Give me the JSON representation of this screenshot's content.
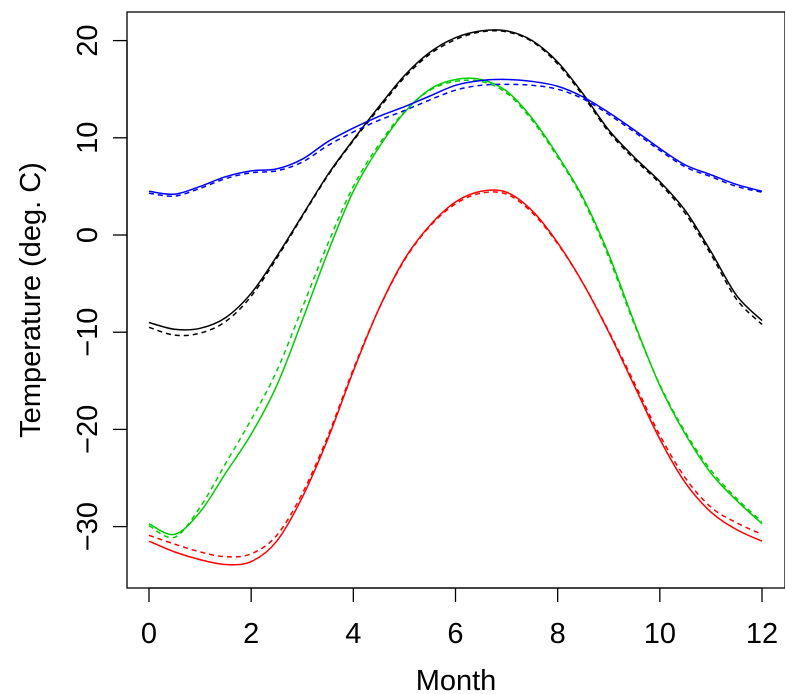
{
  "chart_data": {
    "type": "line",
    "xlabel": "Month",
    "ylabel": "Temperature (deg. C)",
    "xlim": [
      0,
      12
    ],
    "ylim": [
      -36,
      23
    ],
    "xticks": [
      0,
      2,
      4,
      6,
      8,
      10,
      12
    ],
    "yticks": [
      -30,
      -20,
      -10,
      0,
      10,
      20
    ],
    "grid": false,
    "series": [
      {
        "color": "#000000",
        "style": "solid",
        "x": [
          0,
          0.5,
          1,
          1.5,
          2,
          2.5,
          3,
          3.5,
          4,
          4.5,
          5,
          5.5,
          6,
          6.5,
          7,
          7.5,
          8,
          8.5,
          9,
          9.5,
          10,
          10.5,
          11,
          11.5,
          12
        ],
        "y": [
          -9.0,
          -9.7,
          -9.6,
          -8.5,
          -6.0,
          -2.2,
          2.0,
          6.2,
          9.8,
          13.2,
          16.4,
          18.8,
          20.3,
          21.0,
          21.0,
          20.0,
          17.8,
          14.5,
          10.8,
          8.0,
          5.5,
          2.5,
          -1.7,
          -6.2,
          -8.8
        ]
      },
      {
        "color": "#000000",
        "style": "dashed",
        "x": [
          0,
          0.5,
          1,
          1.5,
          2,
          2.5,
          3,
          3.5,
          4,
          4.5,
          5,
          5.5,
          6,
          6.5,
          7,
          7.5,
          8,
          8.5,
          9,
          9.5,
          10,
          10.5,
          11,
          11.5,
          12
        ],
        "y": [
          -9.5,
          -10.3,
          -10.1,
          -8.9,
          -6.3,
          -2.4,
          1.9,
          6.1,
          9.7,
          13.0,
          16.2,
          18.6,
          20.1,
          20.9,
          20.9,
          19.9,
          17.6,
          14.3,
          10.6,
          7.8,
          5.3,
          2.2,
          -2.0,
          -6.6,
          -9.2
        ]
      },
      {
        "color": "#ff0000",
        "style": "solid",
        "x": [
          0,
          0.5,
          1,
          1.5,
          2,
          2.5,
          3,
          3.5,
          4,
          4.5,
          5,
          5.5,
          6,
          6.5,
          7,
          7.5,
          8,
          8.5,
          9,
          9.5,
          10,
          10.5,
          11,
          11.5,
          12
        ],
        "y": [
          -31.5,
          -32.6,
          -33.4,
          -33.9,
          -33.6,
          -31.5,
          -27.0,
          -21.0,
          -14.0,
          -7.6,
          -2.5,
          1.0,
          3.4,
          4.5,
          4.4,
          2.5,
          -0.8,
          -5.0,
          -10.0,
          -15.5,
          -21.0,
          -25.5,
          -28.5,
          -30.3,
          -31.5
        ]
      },
      {
        "color": "#ff0000",
        "style": "dashed",
        "x": [
          0,
          0.5,
          1,
          1.5,
          2,
          2.5,
          3,
          3.5,
          4,
          4.5,
          5,
          5.5,
          6,
          6.5,
          7,
          7.5,
          8,
          8.5,
          9,
          9.5,
          10,
          10.5,
          11,
          11.5,
          12
        ],
        "y": [
          -30.9,
          -31.8,
          -32.6,
          -33.1,
          -32.8,
          -30.9,
          -26.6,
          -20.7,
          -13.8,
          -7.6,
          -2.6,
          0.9,
          3.2,
          4.3,
          4.2,
          2.3,
          -0.9,
          -5.0,
          -9.9,
          -15.2,
          -20.6,
          -25.0,
          -28.0,
          -29.6,
          -30.8
        ]
      },
      {
        "color": "#00cd00",
        "style": "solid",
        "x": [
          0,
          0.5,
          1,
          1.5,
          2,
          2.5,
          3,
          3.5,
          4,
          4.5,
          5,
          5.5,
          6,
          6.5,
          7,
          7.5,
          8,
          8.5,
          9,
          9.5,
          10,
          10.5,
          11,
          11.5,
          12
        ],
        "y": [
          -29.7,
          -30.8,
          -28.5,
          -24.5,
          -20.5,
          -15.5,
          -8.8,
          -1.8,
          4.5,
          9.0,
          12.6,
          15.0,
          16.0,
          16.0,
          14.8,
          12.0,
          8.2,
          3.8,
          -2.0,
          -9.0,
          -15.5,
          -20.5,
          -24.5,
          -27.3,
          -29.7
        ]
      },
      {
        "color": "#00cd00",
        "style": "dashed",
        "x": [
          0,
          0.5,
          1,
          1.5,
          2,
          2.5,
          3,
          3.5,
          4,
          4.5,
          5,
          5.5,
          6,
          6.5,
          7,
          7.5,
          8,
          8.5,
          9,
          9.5,
          10,
          10.5,
          11,
          11.5,
          12
        ],
        "y": [
          -29.9,
          -31.1,
          -28.0,
          -23.5,
          -19.0,
          -14.0,
          -7.5,
          -0.9,
          5.0,
          9.3,
          12.7,
          14.9,
          15.8,
          15.8,
          14.6,
          11.8,
          8.0,
          3.6,
          -2.3,
          -9.2,
          -15.4,
          -20.3,
          -24.2,
          -27.1,
          -29.5
        ]
      },
      {
        "color": "#0000ff",
        "style": "solid",
        "x": [
          0,
          0.5,
          1,
          1.5,
          2,
          2.5,
          3,
          3.5,
          4,
          4.5,
          5,
          5.5,
          6,
          6.5,
          7,
          7.5,
          8,
          8.5,
          9,
          9.5,
          10,
          10.5,
          11,
          11.5,
          12
        ],
        "y": [
          4.5,
          4.2,
          5.0,
          6.0,
          6.6,
          6.8,
          7.8,
          9.6,
          11.0,
          12.2,
          13.2,
          14.3,
          15.4,
          15.9,
          16.0,
          15.8,
          15.3,
          14.2,
          12.6,
          10.8,
          8.9,
          7.2,
          6.2,
          5.2,
          4.5
        ]
      },
      {
        "color": "#0000ff",
        "style": "dashed",
        "x": [
          0,
          0.5,
          1,
          1.5,
          2,
          2.5,
          3,
          3.5,
          4,
          4.5,
          5,
          5.5,
          6,
          6.5,
          7,
          7.5,
          8,
          8.5,
          9,
          9.5,
          10,
          10.5,
          11,
          11.5,
          12
        ],
        "y": [
          4.3,
          4.0,
          4.8,
          5.8,
          6.4,
          6.6,
          7.5,
          9.2,
          10.6,
          11.8,
          12.8,
          13.9,
          14.9,
          15.4,
          15.5,
          15.4,
          15.0,
          14.0,
          12.4,
          10.6,
          8.7,
          7.0,
          6.0,
          5.0,
          4.4
        ]
      }
    ]
  }
}
